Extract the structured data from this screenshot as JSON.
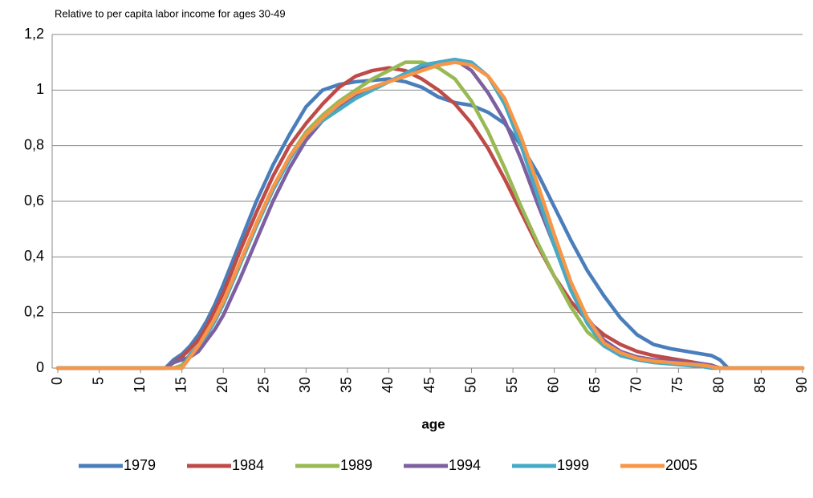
{
  "chart_data": {
    "type": "line",
    "subtitle": "Relative to per capita labor income for ages 30-49",
    "x_label": "age",
    "x": [
      0,
      10,
      13,
      14,
      15,
      16,
      17,
      18,
      19,
      20,
      22,
      24,
      26,
      28,
      30,
      32,
      34,
      36,
      38,
      40,
      42,
      44,
      46,
      48,
      50,
      52,
      54,
      56,
      58,
      60,
      62,
      64,
      66,
      68,
      70,
      72,
      74,
      76,
      78,
      79,
      80,
      81,
      85,
      90
    ],
    "series": [
      {
        "name": "1979",
        "color": "#4a7ebb",
        "values": [
          0,
          0,
          0,
          0.03,
          0.05,
          0.08,
          0.12,
          0.17,
          0.23,
          0.3,
          0.45,
          0.6,
          0.73,
          0.84,
          0.94,
          1.0,
          1.02,
          1.03,
          1.035,
          1.04,
          1.03,
          1.01,
          0.975,
          0.955,
          0.945,
          0.92,
          0.88,
          0.8,
          0.7,
          0.58,
          0.46,
          0.35,
          0.26,
          0.18,
          0.12,
          0.085,
          0.07,
          0.06,
          0.05,
          0.045,
          0.03,
          0,
          0,
          0
        ]
      },
      {
        "name": "1984",
        "color": "#be4b48",
        "values": [
          0,
          0,
          0,
          0.02,
          0.04,
          0.07,
          0.1,
          0.15,
          0.21,
          0.27,
          0.42,
          0.56,
          0.69,
          0.8,
          0.88,
          0.95,
          1.01,
          1.05,
          1.07,
          1.08,
          1.07,
          1.04,
          1.0,
          0.95,
          0.88,
          0.79,
          0.68,
          0.56,
          0.44,
          0.33,
          0.24,
          0.17,
          0.12,
          0.085,
          0.06,
          0.045,
          0.035,
          0.025,
          0.015,
          0.01,
          0,
          0,
          0,
          0
        ]
      },
      {
        "name": "1989",
        "color": "#98b954",
        "values": [
          0,
          0,
          0,
          0,
          0.01,
          0.05,
          0.08,
          0.12,
          0.17,
          0.23,
          0.37,
          0.52,
          0.65,
          0.76,
          0.85,
          0.91,
          0.96,
          1.0,
          1.04,
          1.07,
          1.1,
          1.1,
          1.08,
          1.04,
          0.96,
          0.85,
          0.72,
          0.58,
          0.45,
          0.33,
          0.22,
          0.13,
          0.08,
          0.05,
          0.035,
          0.025,
          0.02,
          0.015,
          0.01,
          0.005,
          0,
          0,
          0,
          0
        ]
      },
      {
        "name": "1994",
        "color": "#7d60a0",
        "values": [
          0,
          0,
          0,
          0.02,
          0.03,
          0.04,
          0.06,
          0.1,
          0.14,
          0.19,
          0.32,
          0.46,
          0.6,
          0.72,
          0.82,
          0.89,
          0.94,
          0.98,
          1.01,
          1.03,
          1.05,
          1.08,
          1.1,
          1.11,
          1.07,
          0.99,
          0.89,
          0.75,
          0.59,
          0.44,
          0.3,
          0.18,
          0.1,
          0.06,
          0.04,
          0.03,
          0.025,
          0.02,
          0.015,
          0.01,
          0,
          0,
          0,
          0
        ]
      },
      {
        "name": "1999",
        "color": "#46aac5",
        "values": [
          0,
          0,
          0,
          0,
          0,
          0.05,
          0.08,
          0.12,
          0.17,
          0.23,
          0.37,
          0.51,
          0.64,
          0.75,
          0.84,
          0.89,
          0.93,
          0.97,
          1.0,
          1.03,
          1.06,
          1.09,
          1.1,
          1.11,
          1.1,
          1.05,
          0.95,
          0.8,
          0.62,
          0.44,
          0.28,
          0.16,
          0.08,
          0.045,
          0.03,
          0.02,
          0.015,
          0.01,
          0.005,
          0,
          0,
          0,
          0,
          0
        ]
      },
      {
        "name": "2005",
        "color": "#f79646",
        "values": [
          0,
          0,
          0,
          0,
          0,
          0.04,
          0.08,
          0.13,
          0.18,
          0.24,
          0.38,
          0.52,
          0.65,
          0.76,
          0.84,
          0.9,
          0.95,
          0.99,
          1.01,
          1.03,
          1.05,
          1.07,
          1.09,
          1.1,
          1.09,
          1.05,
          0.97,
          0.83,
          0.66,
          0.48,
          0.31,
          0.18,
          0.09,
          0.055,
          0.035,
          0.025,
          0.02,
          0.015,
          0.01,
          0.005,
          0,
          0,
          0,
          0
        ]
      }
    ],
    "xlim": [
      0,
      90
    ],
    "xticks": [
      0,
      5,
      10,
      15,
      20,
      25,
      30,
      35,
      40,
      45,
      50,
      55,
      60,
      65,
      70,
      75,
      80,
      85,
      90
    ],
    "ylim": [
      0,
      1.2
    ],
    "yticks": [
      0,
      {
        "value": 0.2,
        "label": "0,2"
      },
      {
        "value": 0.4,
        "label": "0,4"
      },
      {
        "value": 0.6,
        "label": "0,6"
      },
      {
        "value": 0.8,
        "label": "0,8"
      },
      1,
      {
        "value": 1.2,
        "label": "1,2"
      }
    ],
    "grid": true,
    "legend": "bottom"
  }
}
